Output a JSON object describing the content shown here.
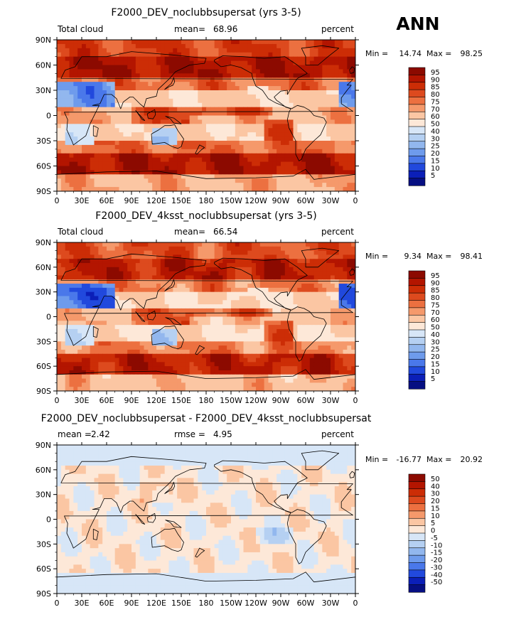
{
  "season": "ANN",
  "chart_data": [
    {
      "type": "heatmap",
      "title": "F2000_DEV_noclubbsupersat (yrs 3-5)",
      "left_label": "Total cloud",
      "stat1_label": "mean=",
      "stat1_value": "68.96",
      "units": "percent",
      "min_label": "Min =",
      "min_value": "14.74",
      "max_label": "Max =",
      "max_value": "98.25",
      "x_ticks": [
        "0",
        "30E",
        "60E",
        "90E",
        "120E",
        "150E",
        "180",
        "150W",
        "120W",
        "90W",
        "60W",
        "30W",
        "0"
      ],
      "y_ticks": [
        "90N",
        "60N",
        "30N",
        "0",
        "30S",
        "60S",
        "90S"
      ],
      "colorbar_levels": [
        "95",
        "90",
        "85",
        "80",
        "75",
        "70",
        "60",
        "50",
        "40",
        "30",
        "25",
        "20",
        "15",
        "10",
        "5"
      ],
      "colorbar_colors": [
        "#8c0a00",
        "#b31500",
        "#cc2d06",
        "#dd4a1e",
        "#ec7040",
        "#f5996b",
        "#fbc6a3",
        "#fde8d8",
        "#d7e6f7",
        "#b5d0f2",
        "#92b7ee",
        "#6e9bec",
        "#4a78ea",
        "#2149dd",
        "#0b1fb8",
        "#060f82"
      ],
      "field": "base"
    },
    {
      "type": "heatmap",
      "title": "F2000_DEV_4ksst_noclubbsupersat (yrs 3-5)",
      "left_label": "Total cloud",
      "stat1_label": "mean=",
      "stat1_value": "66.54",
      "units": "percent",
      "min_label": "Min =",
      "min_value": "9.34",
      "max_label": "Max =",
      "max_value": "98.41",
      "x_ticks": [
        "0",
        "30E",
        "60E",
        "90E",
        "120E",
        "150E",
        "180",
        "150W",
        "120W",
        "90W",
        "60W",
        "30W",
        "0"
      ],
      "y_ticks": [
        "90N",
        "60N",
        "30N",
        "0",
        "30S",
        "60S",
        "90S"
      ],
      "colorbar_levels": [
        "95",
        "90",
        "85",
        "80",
        "75",
        "70",
        "60",
        "50",
        "40",
        "30",
        "25",
        "20",
        "15",
        "10",
        "5"
      ],
      "colorbar_colors": [
        "#8c0a00",
        "#b31500",
        "#cc2d06",
        "#dd4a1e",
        "#ec7040",
        "#f5996b",
        "#fbc6a3",
        "#fde8d8",
        "#d7e6f7",
        "#b5d0f2",
        "#92b7ee",
        "#6e9bec",
        "#4a78ea",
        "#2149dd",
        "#0b1fb8",
        "#060f82"
      ],
      "field": "warm"
    },
    {
      "type": "heatmap",
      "title": "F2000_DEV_noclubbsupersat - F2000_DEV_4ksst_noclubbsupersat",
      "left_label": "mean =",
      "left_value": "2.42",
      "stat1_label": "rmse =",
      "stat1_value": "4.95",
      "units": "percent",
      "min_label": "Min =",
      "min_value": "-16.77",
      "max_label": "Max =",
      "max_value": "20.92",
      "x_ticks": [
        "0",
        "30E",
        "60E",
        "90E",
        "120E",
        "150E",
        "180",
        "150W",
        "120W",
        "90W",
        "60W",
        "30W",
        "0"
      ],
      "y_ticks": [
        "90N",
        "60N",
        "30N",
        "0",
        "30S",
        "60S",
        "90S"
      ],
      "colorbar_levels": [
        "50",
        "40",
        "30",
        "20",
        "15",
        "10",
        "5",
        "0",
        "-5",
        "-10",
        "-15",
        "-20",
        "-30",
        "-40",
        "-50"
      ],
      "colorbar_colors": [
        "#8c0a00",
        "#b31500",
        "#cc2d06",
        "#dd4a1e",
        "#ec7040",
        "#f5996b",
        "#fbc6a3",
        "#fde8d8",
        "#d7e6f7",
        "#b5d0f2",
        "#92b7ee",
        "#6e9bec",
        "#4a78ea",
        "#2149dd",
        "#0b1fb8",
        "#060f82"
      ],
      "field": "diff"
    }
  ]
}
